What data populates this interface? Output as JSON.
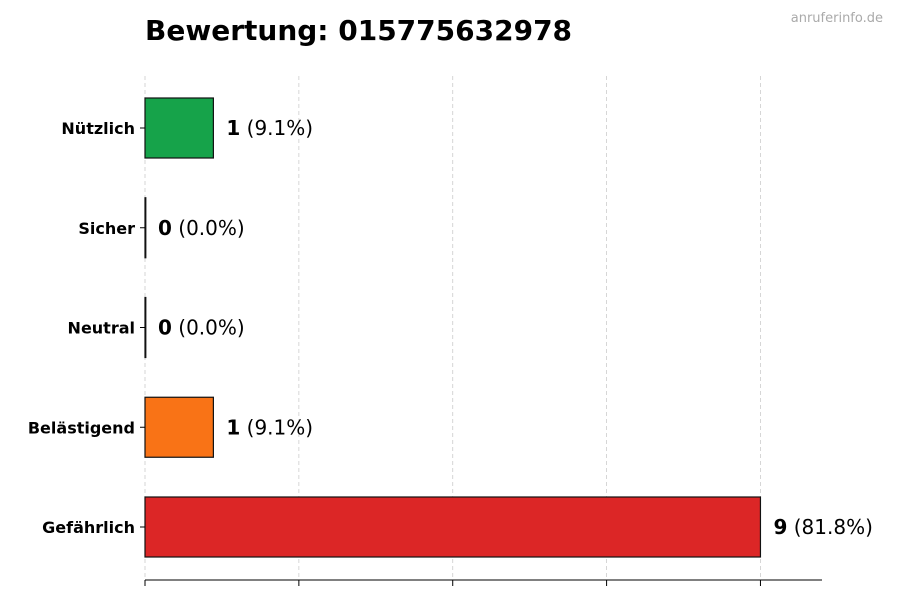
{
  "chart_data": {
    "type": "bar",
    "orientation": "horizontal",
    "title": "Bewertung: 015775632978",
    "watermark": "anruferinfo.de",
    "categories": [
      "Nützlich",
      "Sicher",
      "Neutral",
      "Belästigend",
      "Gefährlich"
    ],
    "values": [
      1,
      0,
      0,
      1,
      9
    ],
    "value_labels": [
      "1",
      "0",
      "0",
      "1",
      "9"
    ],
    "percent_labels": [
      "(9.1%)",
      "(0.0%)",
      "(0.0%)",
      "(9.1%)",
      "(81.8%)"
    ],
    "colors": [
      "#16a34a",
      "#9ca3af",
      "#6b7280",
      "#f97316",
      "#dc2626"
    ],
    "xlim": [
      0,
      9.9
    ],
    "x_gridlines": [
      0,
      2.25,
      4.5,
      6.75,
      9
    ],
    "grid": "x dashed",
    "xlabel": "",
    "ylabel": ""
  }
}
